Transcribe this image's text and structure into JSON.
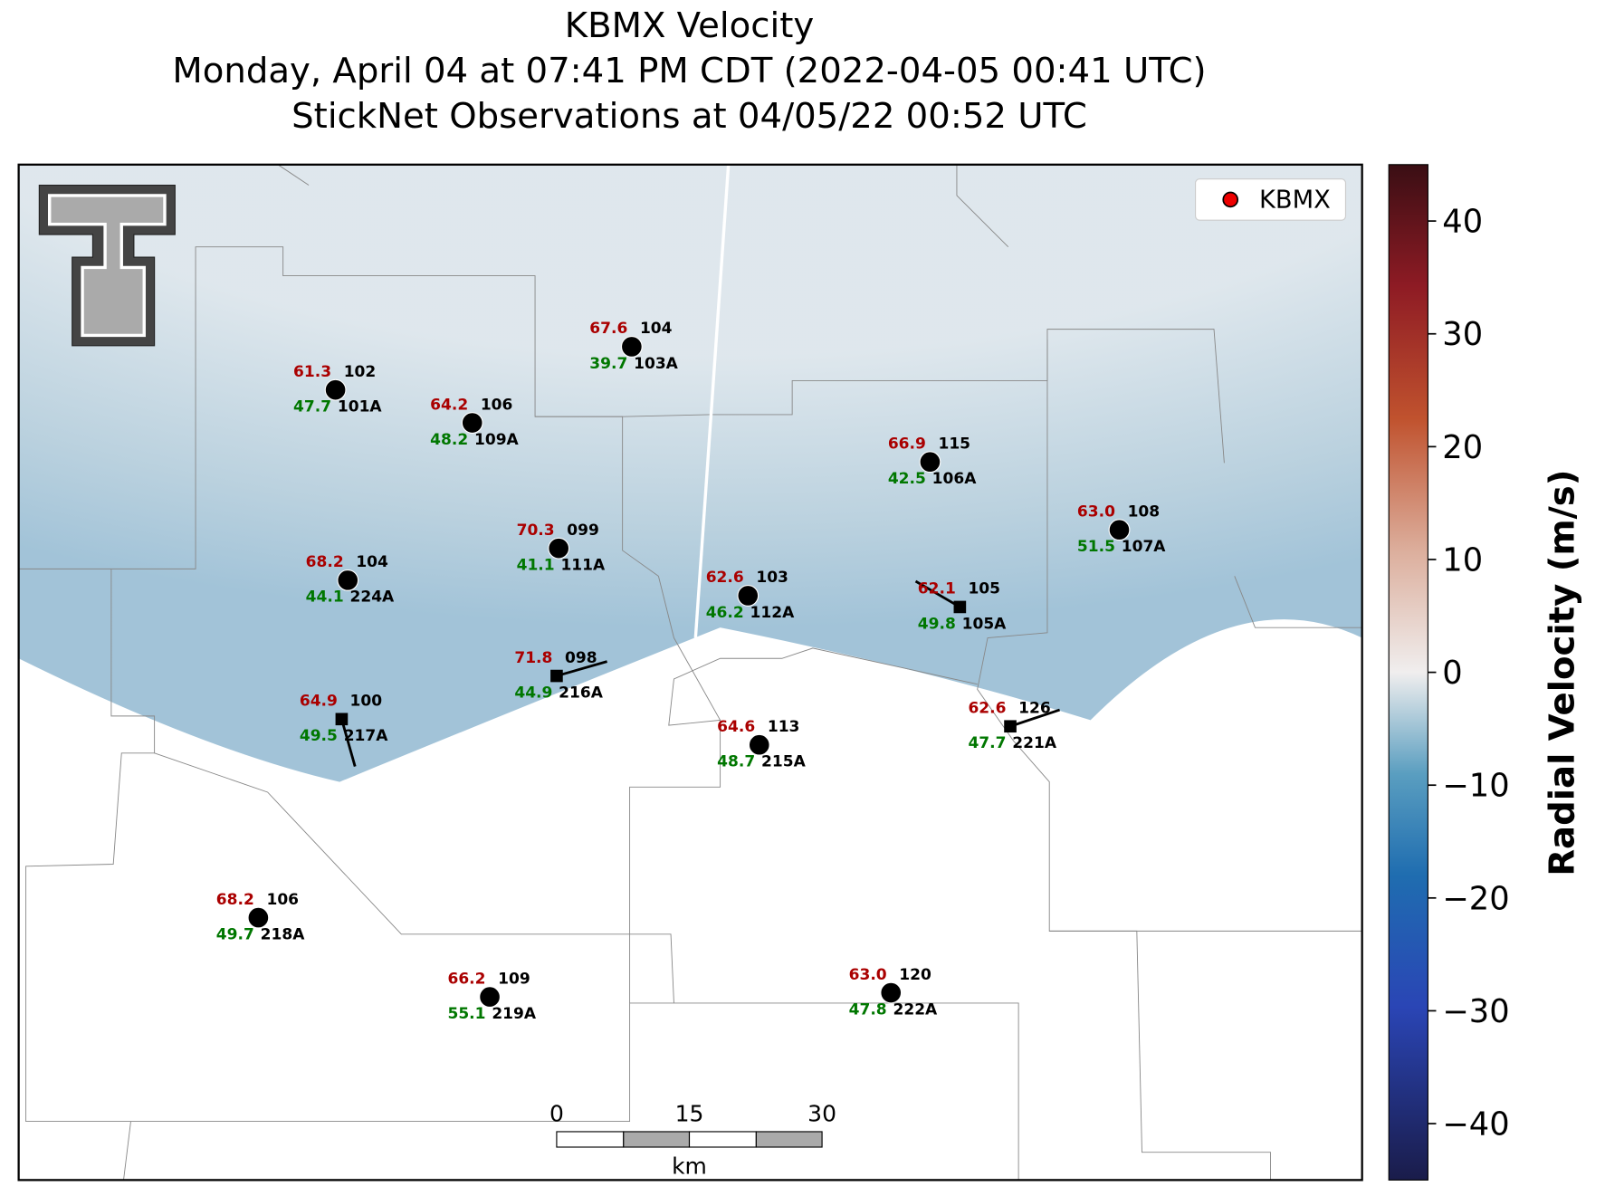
{
  "header": {
    "title": "KBMX Velocity",
    "subtitle": "Monday, April 04 at 07:41 PM CDT (2022-04-05 00:41 UTC)",
    "subtitle2": "StickNet Observations at 04/05/22 00:52 UTC"
  },
  "legend": [
    "KBMX"
  ],
  "stations": [
    {
      "temp": "61.3",
      "dew": "47.7",
      "dir": "102",
      "id": "101A"
    },
    {
      "temp": "64.2",
      "dew": "48.2",
      "dir": "106",
      "id": "109A"
    },
    {
      "temp": "67.6",
      "dew": "39.7",
      "dir": "104",
      "id": "103A"
    },
    {
      "temp": "66.9",
      "dew": "42.5",
      "dir": "115",
      "id": "106A"
    },
    {
      "temp": "63.0",
      "dew": "51.5",
      "dir": "108",
      "id": "107A"
    },
    {
      "temp": "70.3",
      "dew": "41.1",
      "dir": "099",
      "id": "111A"
    },
    {
      "temp": "68.2",
      "dew": "44.1",
      "dir": "104",
      "id": "224A"
    },
    {
      "temp": "62.6",
      "dew": "46.2",
      "dir": "103",
      "id": "112A"
    },
    {
      "temp": "62.1",
      "dew": "49.8",
      "dir": "105",
      "id": "105A"
    },
    {
      "temp": "71.8",
      "dew": "44.9",
      "dir": "098",
      "id": "216A"
    },
    {
      "temp": "64.9",
      "dew": "49.5",
      "dir": "100",
      "id": "217A"
    },
    {
      "temp": "64.6",
      "dew": "48.7",
      "dir": "113",
      "id": "215A"
    },
    {
      "temp": "62.6",
      "dew": "47.7",
      "dir": "126",
      "id": "221A"
    },
    {
      "temp": "68.2",
      "dew": "49.7",
      "dir": "106",
      "id": "218A"
    },
    {
      "temp": "66.2",
      "dew": "55.1",
      "dir": "109",
      "id": "219A"
    },
    {
      "temp": "63.0",
      "dew": "47.8",
      "dir": "120",
      "id": "222A"
    }
  ],
  "colorbar": {
    "label": "Radial Velocity (m/s)",
    "clim": [
      -45,
      45
    ],
    "ticks": [
      40,
      30,
      20,
      10,
      0,
      {
        "value": -10,
        "label": "−10"
      },
      {
        "value": -20,
        "label": "−20"
      },
      {
        "value": -30,
        "label": "−30"
      },
      {
        "value": -40,
        "label": "−40"
      }
    ]
  },
  "scale_bar": {
    "ticks": [
      0,
      15,
      30
    ],
    "unit": "km"
  }
}
